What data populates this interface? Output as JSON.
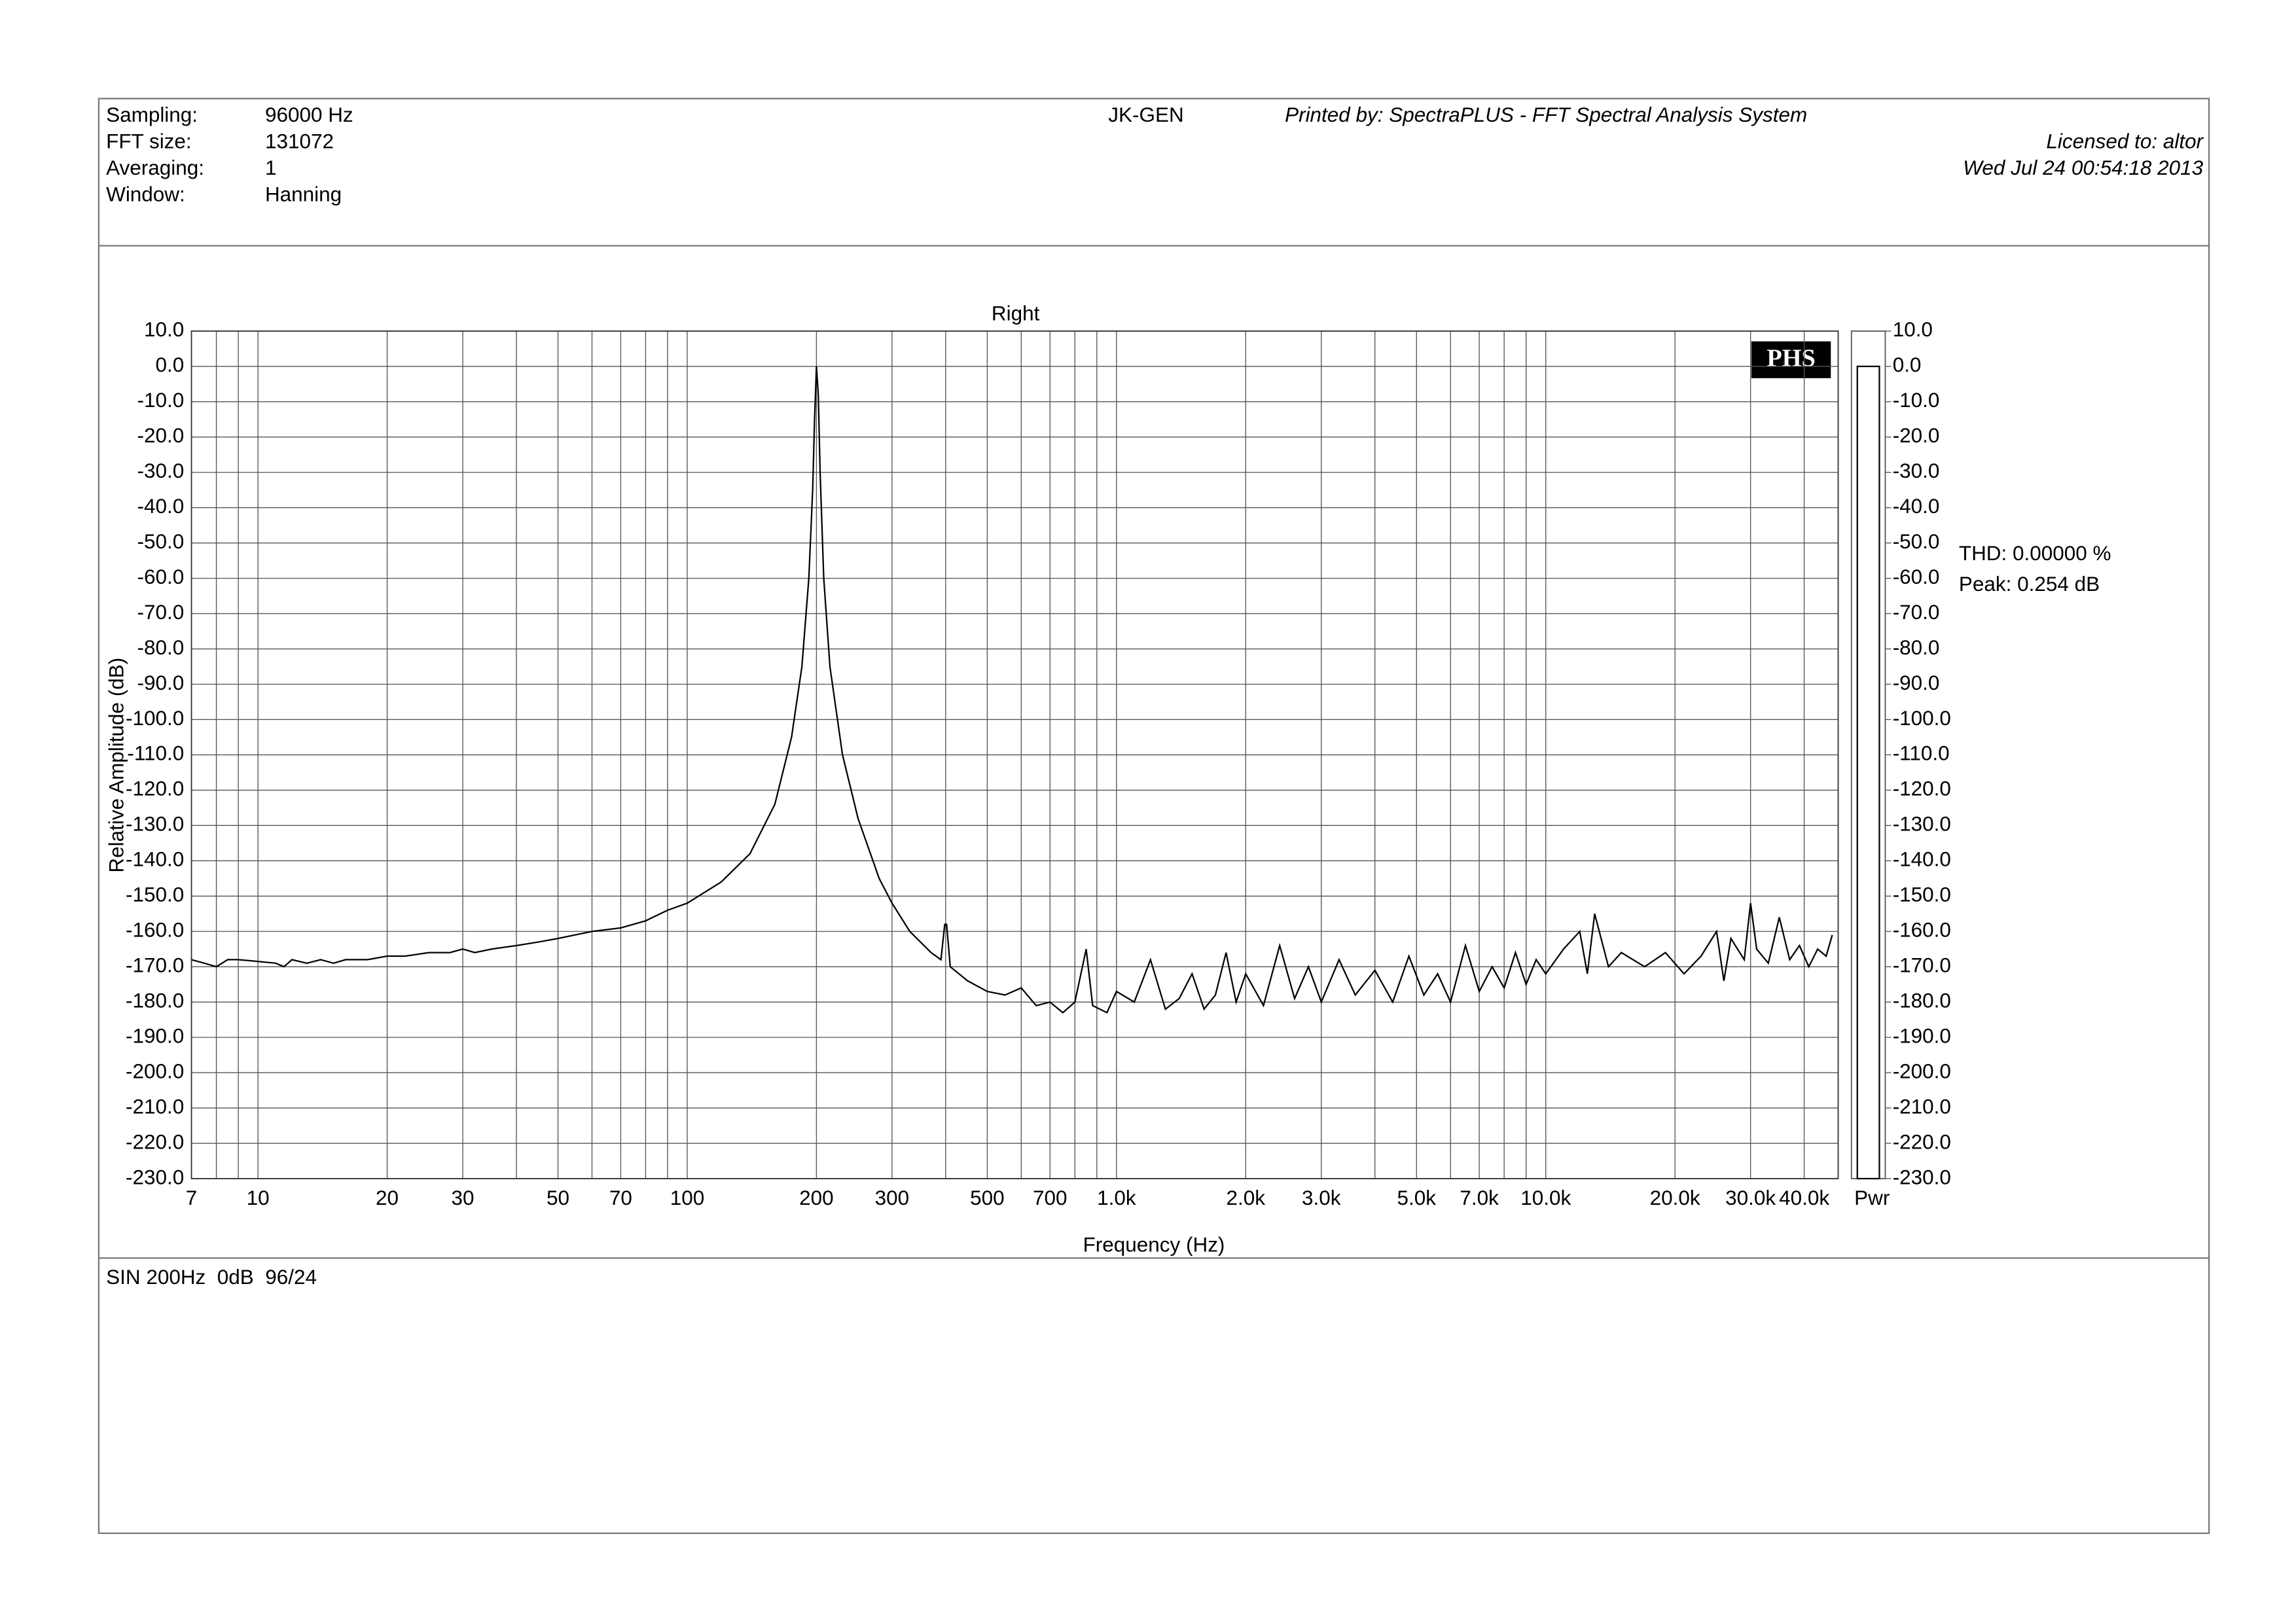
{
  "header": {
    "rows": [
      [
        "Sampling:",
        "96000 Hz"
      ],
      [
        "FFT size:",
        "131072"
      ],
      [
        "Averaging:",
        "1"
      ],
      [
        "Window:",
        "Hanning"
      ]
    ],
    "device": "JK-GEN",
    "printed_by": "Printed by: SpectraPLUS - FFT Spectral Analysis System",
    "licensed_to": "Licensed to: altor",
    "date": "Wed Jul 24 00:54:18 2013"
  },
  "footer": {
    "note": "SIN 200Hz  0dB  96/24"
  },
  "chart_data": {
    "type": "line",
    "title": "Right",
    "xlabel": "Frequency (Hz)",
    "ylabel": "Relative Amplitude (dB)",
    "xscale": "log",
    "grid": true,
    "color": "#000000",
    "logo": "PHS",
    "annotations": [
      "THD: 0.00000 %",
      "Peak: 0.254 dB"
    ],
    "power_bar": {
      "label": "Pwr",
      "value": 0
    },
    "xlim": [
      7,
      48000
    ],
    "ylim": [
      -230,
      10
    ],
    "xticks": [
      7,
      10,
      20,
      30,
      50,
      70,
      100,
      200,
      300,
      500,
      700,
      {
        "value": 1000,
        "label": "1.0k"
      },
      {
        "value": 2000,
        "label": "2.0k"
      },
      {
        "value": 3000,
        "label": "3.0k"
      },
      {
        "value": 5000,
        "label": "5.0k"
      },
      {
        "value": 7000,
        "label": "7.0k"
      },
      {
        "value": 10000,
        "label": "10.0k"
      },
      {
        "value": 20000,
        "label": "20.0k"
      },
      {
        "value": 30000,
        "label": "30.0k"
      },
      {
        "value": 40000,
        "label": "40.0k"
      }
    ],
    "xgrid": [
      8,
      9,
      40,
      60,
      80,
      90,
      400,
      600,
      800,
      900,
      4000,
      6000,
      8000,
      9000
    ],
    "yticks": [
      {
        "value": 10,
        "label": "10.0"
      },
      {
        "value": 0,
        "label": "0.0"
      },
      {
        "value": -10,
        "label": "-10.0"
      },
      {
        "value": -20,
        "label": "-20.0"
      },
      {
        "value": -30,
        "label": "-30.0"
      },
      {
        "value": -40,
        "label": "-40.0"
      },
      {
        "value": -50,
        "label": "-50.0"
      },
      {
        "value": -60,
        "label": "-60.0"
      },
      {
        "value": -70,
        "label": "-70.0"
      },
      {
        "value": -80,
        "label": "-80.0"
      },
      {
        "value": -90,
        "label": "-90.0"
      },
      {
        "value": -100,
        "label": "-100.0"
      },
      {
        "value": -110,
        "label": "-110.0"
      },
      {
        "value": -120,
        "label": "-120.0"
      },
      {
        "value": -130,
        "label": "-130.0"
      },
      {
        "value": -140,
        "label": "-140.0"
      },
      {
        "value": -150,
        "label": "-150.0"
      },
      {
        "value": -160,
        "label": "-160.0"
      },
      {
        "value": -170,
        "label": "-170.0"
      },
      {
        "value": -180,
        "label": "-180.0"
      },
      {
        "value": -190,
        "label": "-190.0"
      },
      {
        "value": -200,
        "label": "-200.0"
      },
      {
        "value": -210,
        "label": "-210.0"
      },
      {
        "value": -220,
        "label": "-220.0"
      },
      {
        "value": -230,
        "label": "-230.0"
      }
    ],
    "x": [
      7,
      7.5,
      8,
      8.5,
      9,
      10,
      11,
      11.5,
      12,
      13,
      14,
      15,
      16,
      18,
      20,
      22,
      25,
      28,
      30,
      32,
      35,
      40,
      45,
      50,
      60,
      70,
      80,
      90,
      100,
      120,
      140,
      160,
      175,
      185,
      192,
      196,
      198,
      200,
      202,
      204,
      208,
      215,
      230,
      250,
      280,
      300,
      330,
      370,
      390,
      398,
      402,
      410,
      450,
      500,
      550,
      600,
      650,
      700,
      750,
      800,
      850,
      880,
      950,
      1000,
      1100,
      1200,
      1300,
      1400,
      1500,
      1600,
      1700,
      1800,
      1900,
      2000,
      2200,
      2400,
      2600,
      2800,
      3000,
      3300,
      3600,
      4000,
      4400,
      4800,
      5200,
      5600,
      6000,
      6500,
      7000,
      7500,
      8000,
      8500,
      9000,
      9500,
      10000,
      11000,
      12000,
      12500,
      13000,
      14000,
      15000,
      17000,
      19000,
      21000,
      23000,
      25000,
      26000,
      27000,
      29000,
      30000,
      31000,
      33000,
      35000,
      37000,
      39000,
      41000,
      43000,
      45000,
      46500
    ],
    "values": [
      -168,
      -169,
      -170,
      -168,
      -168,
      -168.5,
      -169,
      -170,
      -168,
      -169,
      -168,
      -169,
      -168,
      -168,
      -167,
      -167,
      -166,
      -166,
      -165,
      -166,
      -165,
      -164,
      -163,
      -162,
      -160,
      -159,
      -157,
      -154,
      -152,
      -146,
      -138,
      -124,
      -105,
      -85,
      -60,
      -35,
      -15,
      0,
      -8,
      -30,
      -60,
      -85,
      -110,
      -128,
      -145,
      -152,
      -160,
      -166,
      -168,
      -158,
      -158,
      -170,
      -174,
      -177,
      -178,
      -176,
      -181,
      -180,
      -183,
      -180,
      -165,
      -181,
      -183,
      -177,
      -180,
      -168,
      -182,
      -179,
      -172,
      -182,
      -178,
      -166,
      -180,
      -172,
      -181,
      -164,
      -179,
      -170,
      -180,
      -168,
      -178,
      -171,
      -180,
      -167,
      -178,
      -172,
      -180,
      -164,
      -177,
      -170,
      -176,
      -166,
      -175,
      -168,
      -172,
      -165,
      -160,
      -172,
      -155,
      -170,
      -166,
      -170,
      -166,
      -172,
      -167,
      -160,
      -174,
      -162,
      -168,
      -152,
      -165,
      -169,
      -156,
      -168,
      -164,
      -170,
      -165,
      -167,
      -161
    ]
  }
}
